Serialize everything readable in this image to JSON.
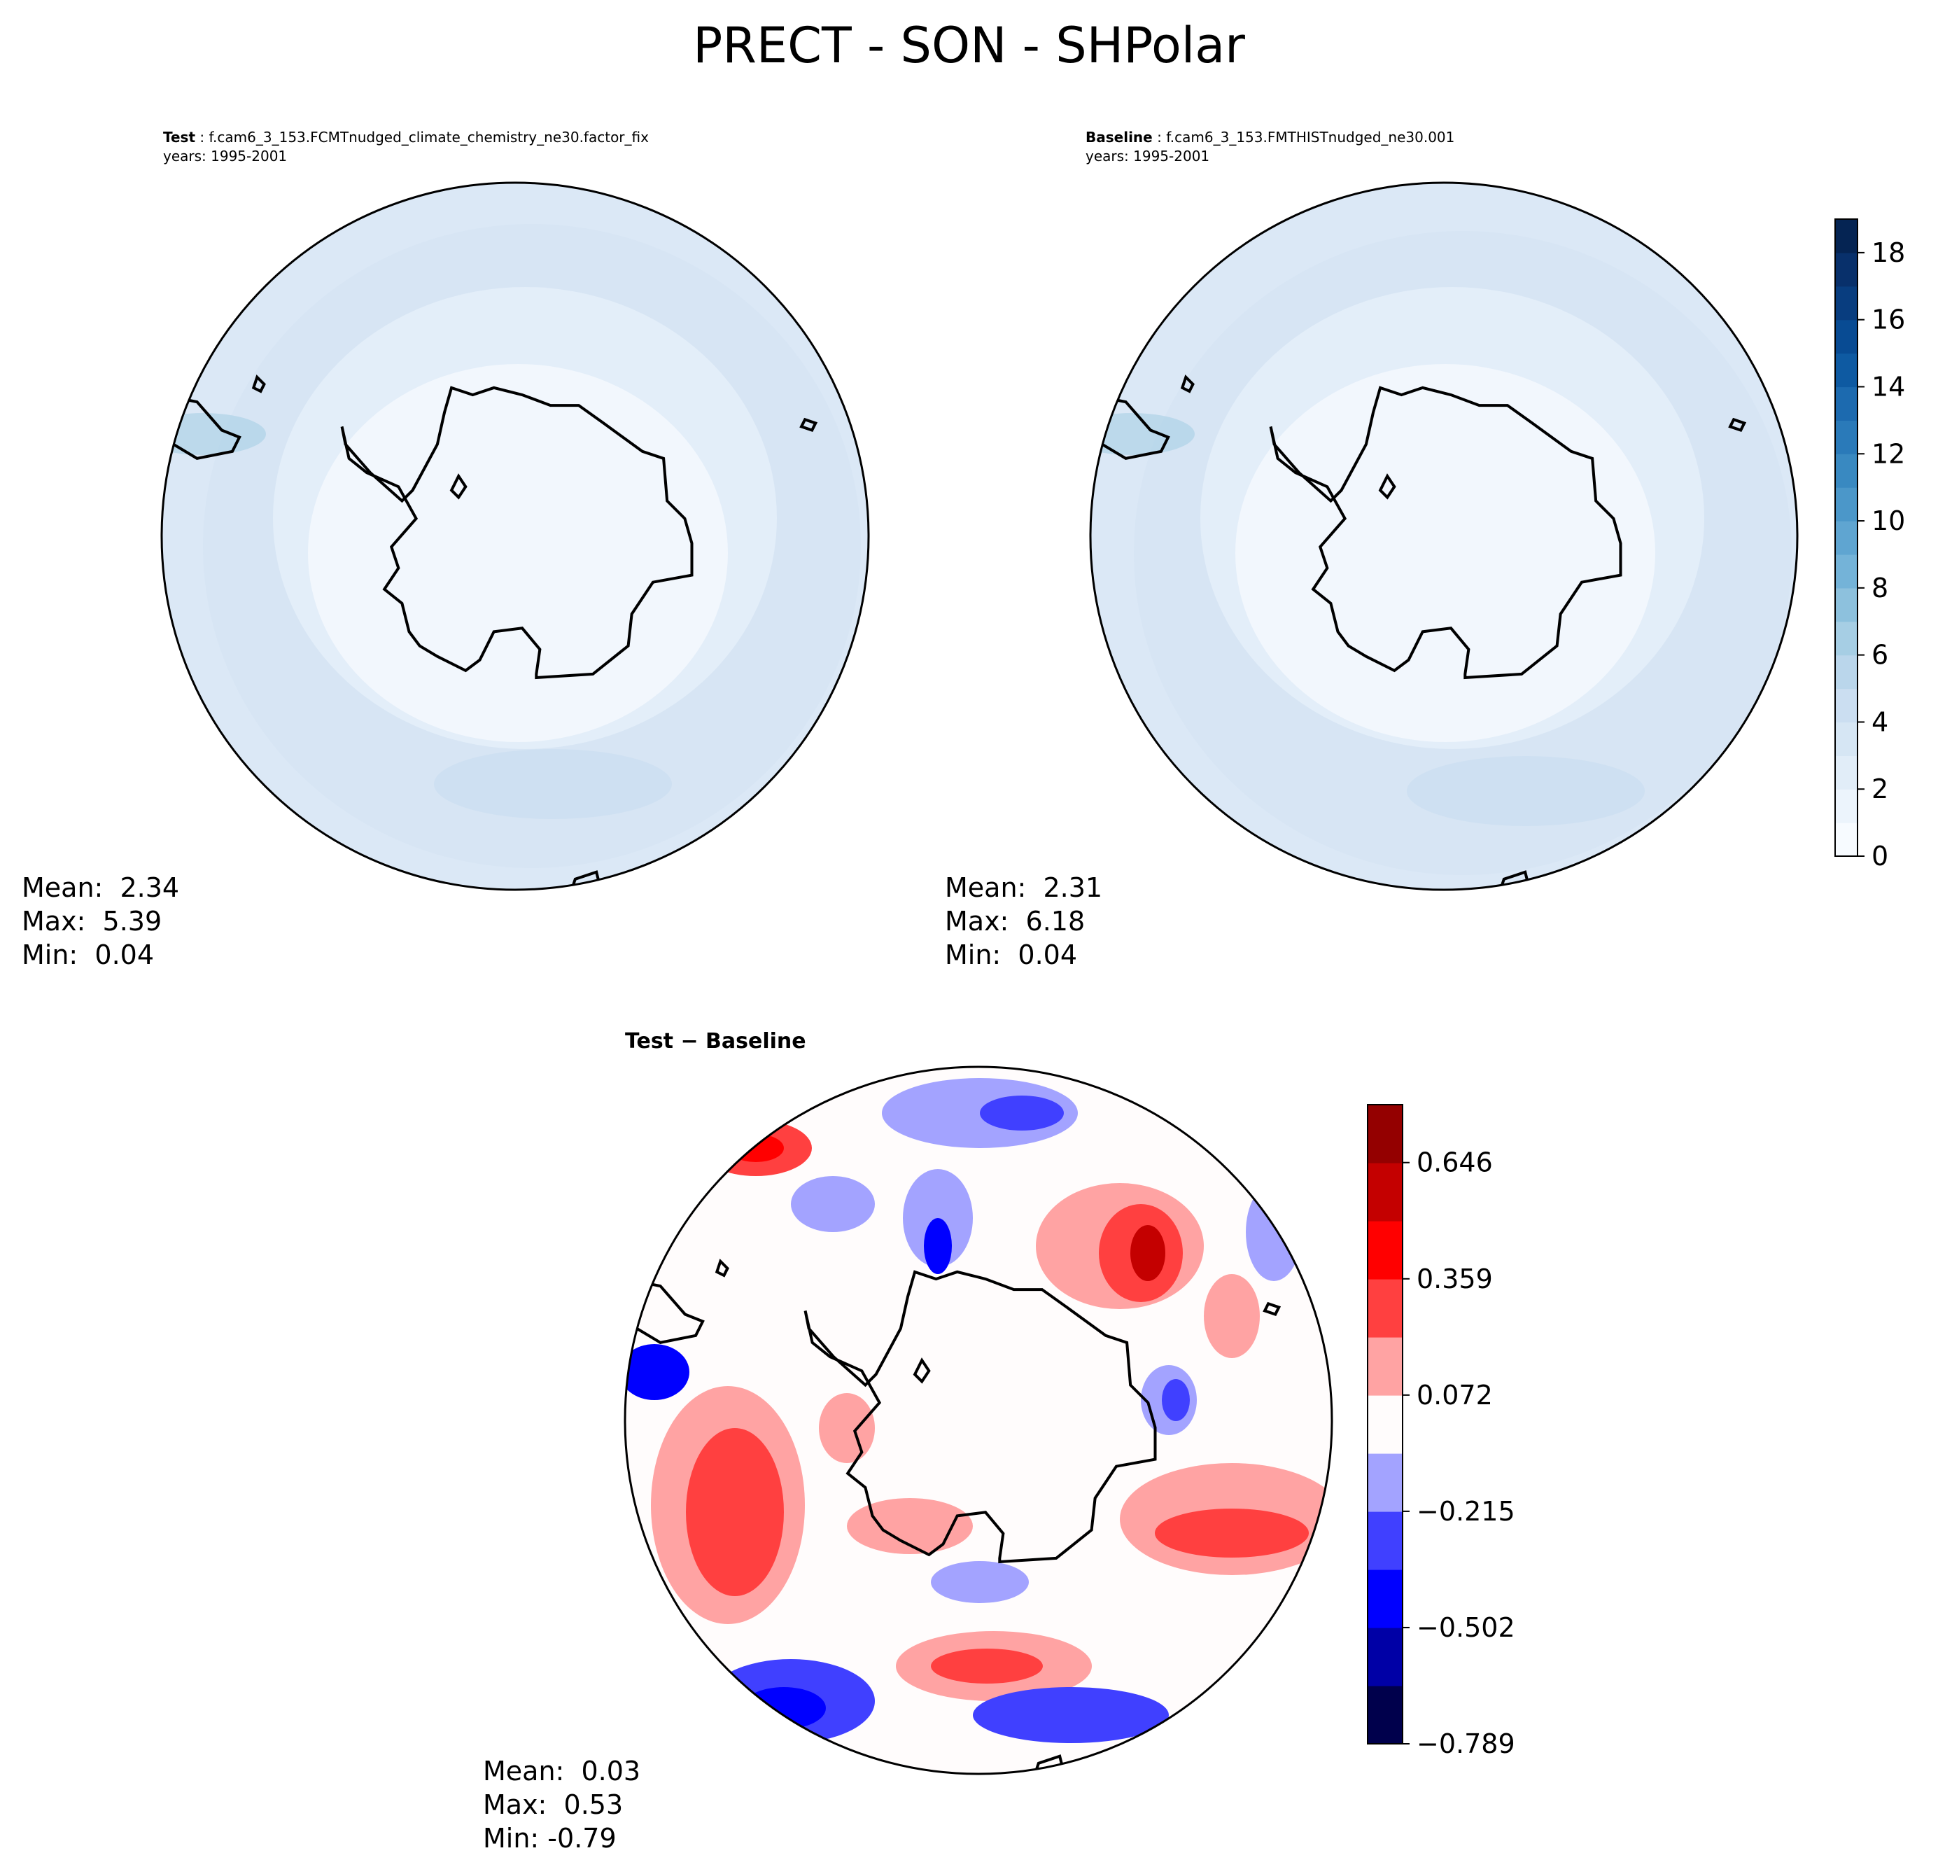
{
  "figure_title": "PRECT - SON - SHPolar",
  "panels": [
    {
      "key": "test",
      "label": "Test",
      "case": "f.cam6_3_153.FCMTnudged_climate_chemistry_ne30.factor_fix",
      "years": "years: 1995-2001",
      "stats": {
        "mean": "Mean:  2.34",
        "max": "Max:  5.39",
        "min": "Min:  0.04"
      }
    },
    {
      "key": "baseline",
      "label": "Baseline",
      "case": "f.cam6_3_153.FMTHISTnudged_ne30.001",
      "years": "years: 1995-2001",
      "stats": {
        "mean": "Mean:  2.31",
        "max": "Max:  6.18",
        "min": "Min:  0.04"
      }
    },
    {
      "key": "diff",
      "label": "Test − Baseline",
      "stats": {
        "mean": "Mean:  0.03",
        "max": "Max:  0.53",
        "min": "Min: -0.79"
      }
    }
  ],
  "chart_data": [
    {
      "type": "heatmap",
      "title": "Test",
      "projection": "South polar stereographic",
      "mean": 2.34,
      "max": 5.39,
      "min": 0.04
    },
    {
      "type": "heatmap",
      "title": "Baseline",
      "projection": "South polar stereographic",
      "mean": 2.31,
      "max": 6.18,
      "min": 0.04
    },
    {
      "type": "heatmap",
      "title": "Test − Baseline",
      "projection": "South polar stereographic",
      "mean": 0.03,
      "max": 0.53,
      "min": -0.79
    }
  ],
  "colorbars": {
    "blues": {
      "range": [
        0,
        19
      ],
      "levels": 19,
      "ticks": [
        "0",
        "2",
        "4",
        "6",
        "8",
        "10",
        "12",
        "14",
        "16",
        "18"
      ],
      "tick_values": [
        0,
        2,
        4,
        6,
        8,
        10,
        12,
        14,
        16,
        18
      ],
      "colors": [
        "#f7fbff",
        "#ecf4fc",
        "#e1edf8",
        "#d6e6f4",
        "#cbdef1",
        "#bad6eb",
        "#a6cee4",
        "#8dc1dd",
        "#74b3d8",
        "#5fa5d1",
        "#4b97c9",
        "#3989c1",
        "#2a7ab9",
        "#1c6aaf",
        "#0e5aa2",
        "#084b93",
        "#083d7f",
        "#08306b",
        "#052453"
      ]
    },
    "diverging": {
      "range": [
        -0.789,
        0.789
      ],
      "ticks": [
        "0.646",
        "0.359",
        "0.072",
        "−0.215",
        "−0.502",
        "−0.789"
      ],
      "tick_values": [
        0.646,
        0.359,
        0.072,
        -0.215,
        -0.502,
        -0.789
      ],
      "colors": [
        "#00004c",
        "#0000a6",
        "#0000ff",
        "#4040ff",
        "#a3a3ff",
        "#fffcfc",
        "#ffa3a3",
        "#ff4040",
        "#ff0000",
        "#c40000",
        "#940000"
      ]
    }
  },
  "palette": {
    "coastline": "#000000",
    "ocean_base": "#dbe8f6",
    "ocean_mid": "#d2e2f2",
    "land_fill": "#f2f7fd"
  }
}
